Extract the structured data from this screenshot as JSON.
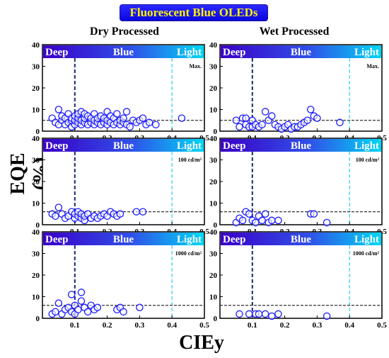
{
  "banner_title": "Fluorescent Blue OLEDs",
  "column_titles": [
    "Dry Processed",
    "Wet Processed"
  ],
  "ylabel": "EQE (%)",
  "xlabel": "CIEy",
  "colors": {
    "marker": "#1a1aff",
    "deep_line": "#1a2a6e",
    "light_line": "#55d8f0",
    "gradient_start": "#3a00c8",
    "gradient_mid": "#3050e8",
    "gradient_end": "#00d8f5",
    "band_text": "#ffffff"
  },
  "chart_data": [
    {
      "type": "scatter",
      "id": "dry-max",
      "column": "Dry Processed",
      "annotation": "Max.",
      "bands": [
        "Deep",
        "Blue",
        "Light"
      ],
      "xlim": [
        0,
        0.5
      ],
      "ylim": [
        0,
        40
      ],
      "xticks": [
        "0.1",
        "0.2",
        "0.3",
        "0.4",
        "0.5"
      ],
      "yticks": [
        "0",
        "10",
        "20",
        "30",
        "40"
      ],
      "vlines": [
        0.1,
        0.4
      ],
      "hline": 5,
      "points": [
        [
          0.03,
          6
        ],
        [
          0.04,
          4
        ],
        [
          0.05,
          10
        ],
        [
          0.05,
          3
        ],
        [
          0.06,
          5
        ],
        [
          0.06,
          7
        ],
        [
          0.07,
          3
        ],
        [
          0.07,
          6
        ],
        [
          0.08,
          4
        ],
        [
          0.08,
          8
        ],
        [
          0.09,
          2
        ],
        [
          0.09,
          5
        ],
        [
          0.09,
          6
        ],
        [
          0.1,
          3
        ],
        [
          0.1,
          5
        ],
        [
          0.1,
          7
        ],
        [
          0.11,
          4
        ],
        [
          0.11,
          6
        ],
        [
          0.11,
          8
        ],
        [
          0.12,
          3
        ],
        [
          0.12,
          5
        ],
        [
          0.12,
          9
        ],
        [
          0.13,
          4
        ],
        [
          0.13,
          6
        ],
        [
          0.13,
          8
        ],
        [
          0.14,
          3
        ],
        [
          0.14,
          7
        ],
        [
          0.15,
          4
        ],
        [
          0.15,
          6
        ],
        [
          0.16,
          3
        ],
        [
          0.16,
          5
        ],
        [
          0.16,
          8
        ],
        [
          0.17,
          4
        ],
        [
          0.17,
          6
        ],
        [
          0.18,
          3
        ],
        [
          0.18,
          7
        ],
        [
          0.19,
          4
        ],
        [
          0.19,
          6
        ],
        [
          0.2,
          3
        ],
        [
          0.2,
          5
        ],
        [
          0.2,
          9
        ],
        [
          0.21,
          4
        ],
        [
          0.21,
          7
        ],
        [
          0.22,
          3
        ],
        [
          0.22,
          6
        ],
        [
          0.23,
          4
        ],
        [
          0.23,
          8
        ],
        [
          0.24,
          3
        ],
        [
          0.24,
          5
        ],
        [
          0.25,
          4
        ],
        [
          0.25,
          6
        ],
        [
          0.26,
          3
        ],
        [
          0.26,
          9
        ],
        [
          0.27,
          2
        ],
        [
          0.28,
          5
        ],
        [
          0.29,
          4
        ],
        [
          0.3,
          5
        ],
        [
          0.31,
          6
        ],
        [
          0.32,
          3
        ],
        [
          0.33,
          4
        ],
        [
          0.35,
          3
        ],
        [
          0.43,
          6
        ]
      ]
    },
    {
      "type": "scatter",
      "id": "wet-max",
      "column": "Wet Processed",
      "annotation": "Max.",
      "bands": [
        "Deep",
        "Blue",
        "Light"
      ],
      "xlim": [
        0,
        0.5
      ],
      "ylim": [
        0,
        40
      ],
      "xticks": [
        "0.1",
        "0.2",
        "0.3",
        "0.4",
        "0.5"
      ],
      "yticks": [
        "0",
        "10",
        "20",
        "30",
        "40"
      ],
      "vlines": [
        0.1,
        0.4
      ],
      "hline": 5,
      "points": [
        [
          0.05,
          5
        ],
        [
          0.06,
          2
        ],
        [
          0.07,
          6
        ],
        [
          0.08,
          3
        ],
        [
          0.08,
          6
        ],
        [
          0.09,
          2
        ],
        [
          0.1,
          5
        ],
        [
          0.1,
          2
        ],
        [
          0.11,
          3
        ],
        [
          0.12,
          2
        ],
        [
          0.13,
          3
        ],
        [
          0.14,
          9
        ],
        [
          0.15,
          5
        ],
        [
          0.16,
          7
        ],
        [
          0.17,
          3
        ],
        [
          0.18,
          2
        ],
        [
          0.19,
          1
        ],
        [
          0.2,
          2
        ],
        [
          0.21,
          3
        ],
        [
          0.22,
          1
        ],
        [
          0.23,
          2
        ],
        [
          0.24,
          2
        ],
        [
          0.25,
          3
        ],
        [
          0.26,
          4
        ],
        [
          0.27,
          5
        ],
        [
          0.28,
          10
        ],
        [
          0.29,
          7
        ],
        [
          0.3,
          6
        ],
        [
          0.37,
          4
        ]
      ]
    },
    {
      "type": "scatter",
      "id": "dry-100",
      "column": "Dry Processed",
      "annotation": "100 cd/m²",
      "bands": [
        "Deep",
        "Blue",
        "Light"
      ],
      "xlim": [
        0,
        0.5
      ],
      "ylim": [
        0,
        40
      ],
      "xticks": [
        "0.1",
        "0.2",
        "0.3",
        "0.4",
        "0.5"
      ],
      "yticks": [
        "0",
        "10",
        "20",
        "30",
        "40"
      ],
      "vlines": [
        0.1,
        0.4
      ],
      "hline": 6,
      "points": [
        [
          0.03,
          5
        ],
        [
          0.04,
          4
        ],
        [
          0.05,
          8
        ],
        [
          0.06,
          5
        ],
        [
          0.07,
          3
        ],
        [
          0.08,
          4
        ],
        [
          0.09,
          6
        ],
        [
          0.1,
          3
        ],
        [
          0.1,
          5
        ],
        [
          0.11,
          4
        ],
        [
          0.11,
          6
        ],
        [
          0.12,
          3
        ],
        [
          0.12,
          5
        ],
        [
          0.13,
          2
        ],
        [
          0.13,
          4
        ],
        [
          0.14,
          5
        ],
        [
          0.15,
          3
        ],
        [
          0.16,
          4
        ],
        [
          0.17,
          3
        ],
        [
          0.18,
          4
        ],
        [
          0.19,
          5
        ],
        [
          0.2,
          4
        ],
        [
          0.21,
          6
        ],
        [
          0.22,
          5
        ],
        [
          0.23,
          4
        ],
        [
          0.24,
          5
        ],
        [
          0.29,
          6
        ],
        [
          0.31,
          6
        ]
      ]
    },
    {
      "type": "scatter",
      "id": "wet-100",
      "column": "Wet Processed",
      "annotation": "100 cd/m²",
      "bands": [
        "Deep",
        "Blue",
        "Light"
      ],
      "xlim": [
        0,
        0.5
      ],
      "ylim": [
        0,
        40
      ],
      "xticks": [
        "0.1",
        "0.2",
        "0.3",
        "0.4",
        "0.5"
      ],
      "yticks": [
        "0",
        "10",
        "20",
        "30",
        "40"
      ],
      "vlines": [
        0.1,
        0.4
      ],
      "hline": 6,
      "points": [
        [
          0.05,
          1
        ],
        [
          0.06,
          3
        ],
        [
          0.07,
          2
        ],
        [
          0.08,
          6
        ],
        [
          0.09,
          5
        ],
        [
          0.1,
          2
        ],
        [
          0.11,
          1
        ],
        [
          0.12,
          4
        ],
        [
          0.13,
          2
        ],
        [
          0.14,
          5
        ],
        [
          0.15,
          1
        ],
        [
          0.16,
          2
        ],
        [
          0.18,
          2
        ],
        [
          0.28,
          5
        ],
        [
          0.29,
          5
        ],
        [
          0.33,
          1
        ]
      ]
    },
    {
      "type": "scatter",
      "id": "dry-1000",
      "column": "Dry Processed",
      "annotation": "1000 cd/m²",
      "bands": [
        "Deep",
        "Blue",
        "Light"
      ],
      "xlim": [
        0,
        0.5
      ],
      "ylim": [
        0,
        40
      ],
      "xticks": [
        "0.1",
        "0.2",
        "0.3",
        "0.4",
        "0.5"
      ],
      "yticks": [
        "0",
        "10",
        "20",
        "30",
        "40"
      ],
      "vlines": [
        0.1,
        0.4
      ],
      "hline": 6,
      "points": [
        [
          0.03,
          2
        ],
        [
          0.04,
          3
        ],
        [
          0.05,
          7
        ],
        [
          0.06,
          2
        ],
        [
          0.07,
          4
        ],
        [
          0.08,
          5
        ],
        [
          0.09,
          3
        ],
        [
          0.09,
          11
        ],
        [
          0.1,
          6
        ],
        [
          0.1,
          2
        ],
        [
          0.11,
          4
        ],
        [
          0.12,
          8
        ],
        [
          0.12,
          12
        ],
        [
          0.13,
          5
        ],
        [
          0.14,
          3
        ],
        [
          0.15,
          6
        ],
        [
          0.16,
          4
        ],
        [
          0.17,
          5
        ],
        [
          0.23,
          4
        ],
        [
          0.24,
          5
        ],
        [
          0.25,
          3
        ],
        [
          0.3,
          5
        ]
      ]
    },
    {
      "type": "scatter",
      "id": "wet-1000",
      "column": "Wet Processed",
      "annotation": "1000 cd/m²",
      "bands": [
        "Deep",
        "Blue",
        "Light"
      ],
      "xlim": [
        0,
        0.5
      ],
      "ylim": [
        0,
        40
      ],
      "xticks": [
        "0.1",
        "0.2",
        "0.3",
        "0.4",
        "0.5"
      ],
      "yticks": [
        "0",
        "10",
        "20",
        "30",
        "40"
      ],
      "vlines": [
        0.1,
        0.4
      ],
      "hline": 6,
      "points": [
        [
          0.06,
          2
        ],
        [
          0.09,
          2
        ],
        [
          0.11,
          2
        ],
        [
          0.12,
          2
        ],
        [
          0.14,
          2
        ],
        [
          0.16,
          1
        ],
        [
          0.18,
          2
        ],
        [
          0.33,
          1
        ]
      ]
    }
  ]
}
